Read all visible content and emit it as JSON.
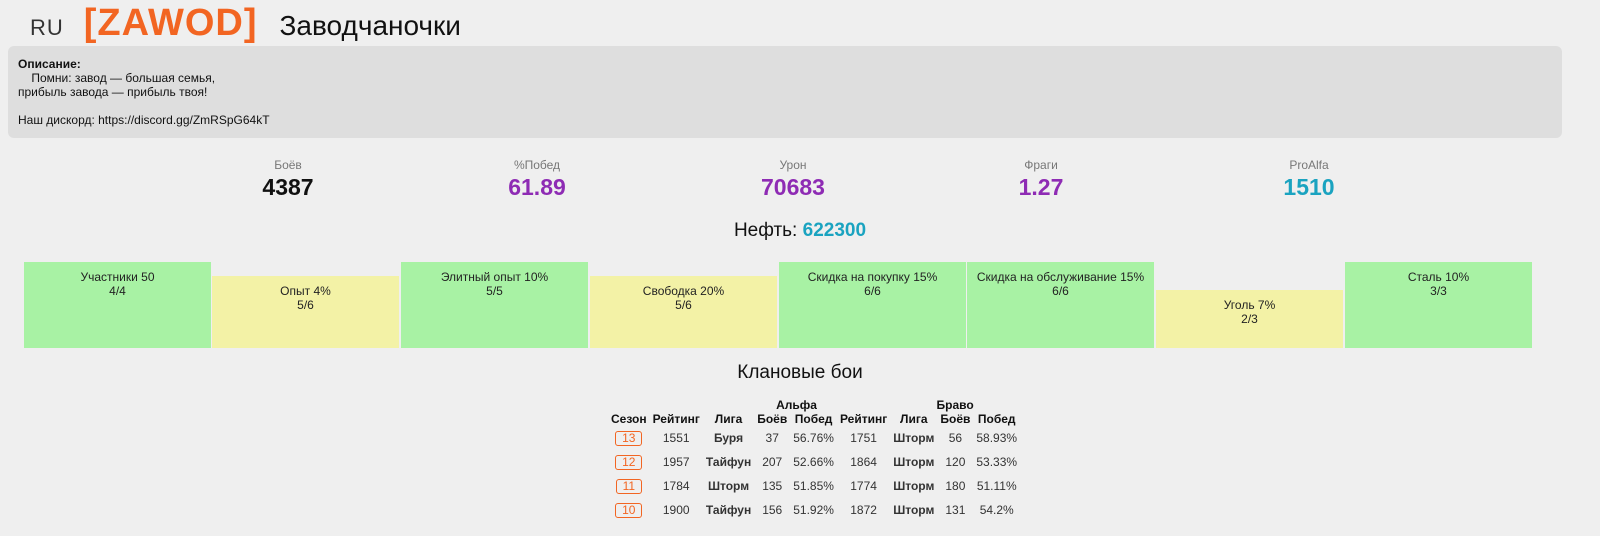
{
  "header": {
    "region": "RU",
    "tag": "[ZAWOD]",
    "name": "Заводчаночки"
  },
  "description": {
    "label": "Описание:",
    "lines": [
      "    Помни: завод — большая семья,",
      "прибыль завода — прибыль твоя!",
      "",
      "Наш дискорд: https://discord.gg/ZmRSpG64kT"
    ]
  },
  "stats": [
    {
      "label": "Боёв",
      "value": "4387"
    },
    {
      "label": "%Побед",
      "value": "61.89"
    },
    {
      "label": "Урон",
      "value": "70683"
    },
    {
      "label": "Фраги",
      "value": "1.27"
    },
    {
      "label": "ProAlfa",
      "value": "1510"
    }
  ],
  "oil": {
    "label": "Нефть:",
    "value": "622300"
  },
  "buildings": [
    {
      "name": "Участники 50",
      "progress": "4/4",
      "color": "#a8f2a4"
    },
    {
      "name": "Опыт 4%",
      "progress": "5/6",
      "color": "#f3f2a6"
    },
    {
      "name": "Элитный опыт 10%",
      "progress": "5/5",
      "color": "#a8f2a4"
    },
    {
      "name": "Свободка 20%",
      "progress": "5/6",
      "color": "#f3f2a6"
    },
    {
      "name": "Скидка на покупку 15%",
      "progress": "6/6",
      "color": "#a8f2a4"
    },
    {
      "name": "Скидка на обслуживание 15%",
      "progress": "6/6",
      "color": "#a8f2a4"
    },
    {
      "name": "Уголь 7%",
      "progress": "2/3",
      "color": "#f3f2a6"
    },
    {
      "name": "Сталь 10%",
      "progress": "3/3",
      "color": "#a8f2a4"
    }
  ],
  "clan_battles": {
    "title": "Клановые бои",
    "group_alpha": "Альфа",
    "group_bravo": "Браво",
    "headers": {
      "season": "Сезон",
      "rating": "Рейтинг",
      "league": "Лига",
      "battles": "Боёв",
      "wins": "Побед"
    },
    "rows": [
      {
        "season": "13",
        "a_rating": "1551",
        "a_league": "Буря",
        "a_battles": "37",
        "a_wins": "56.76%",
        "b_rating": "1751",
        "b_league": "Шторм",
        "b_battles": "56",
        "b_wins": "58.93%"
      },
      {
        "season": "12",
        "a_rating": "1957",
        "a_league": "Тайфун",
        "a_battles": "207",
        "a_wins": "52.66%",
        "b_rating": "1864",
        "b_league": "Шторм",
        "b_battles": "120",
        "b_wins": "53.33%"
      },
      {
        "season": "11",
        "a_rating": "1784",
        "a_league": "Шторм",
        "a_battles": "135",
        "a_wins": "51.85%",
        "b_rating": "1774",
        "b_league": "Шторм",
        "b_battles": "180",
        "b_wins": "51.11%"
      },
      {
        "season": "10",
        "a_rating": "1900",
        "a_league": "Тайфун",
        "a_battles": "156",
        "a_wins": "51.92%",
        "b_rating": "1872",
        "b_league": "Шторм",
        "b_battles": "131",
        "b_wins": "54.2%"
      }
    ]
  }
}
